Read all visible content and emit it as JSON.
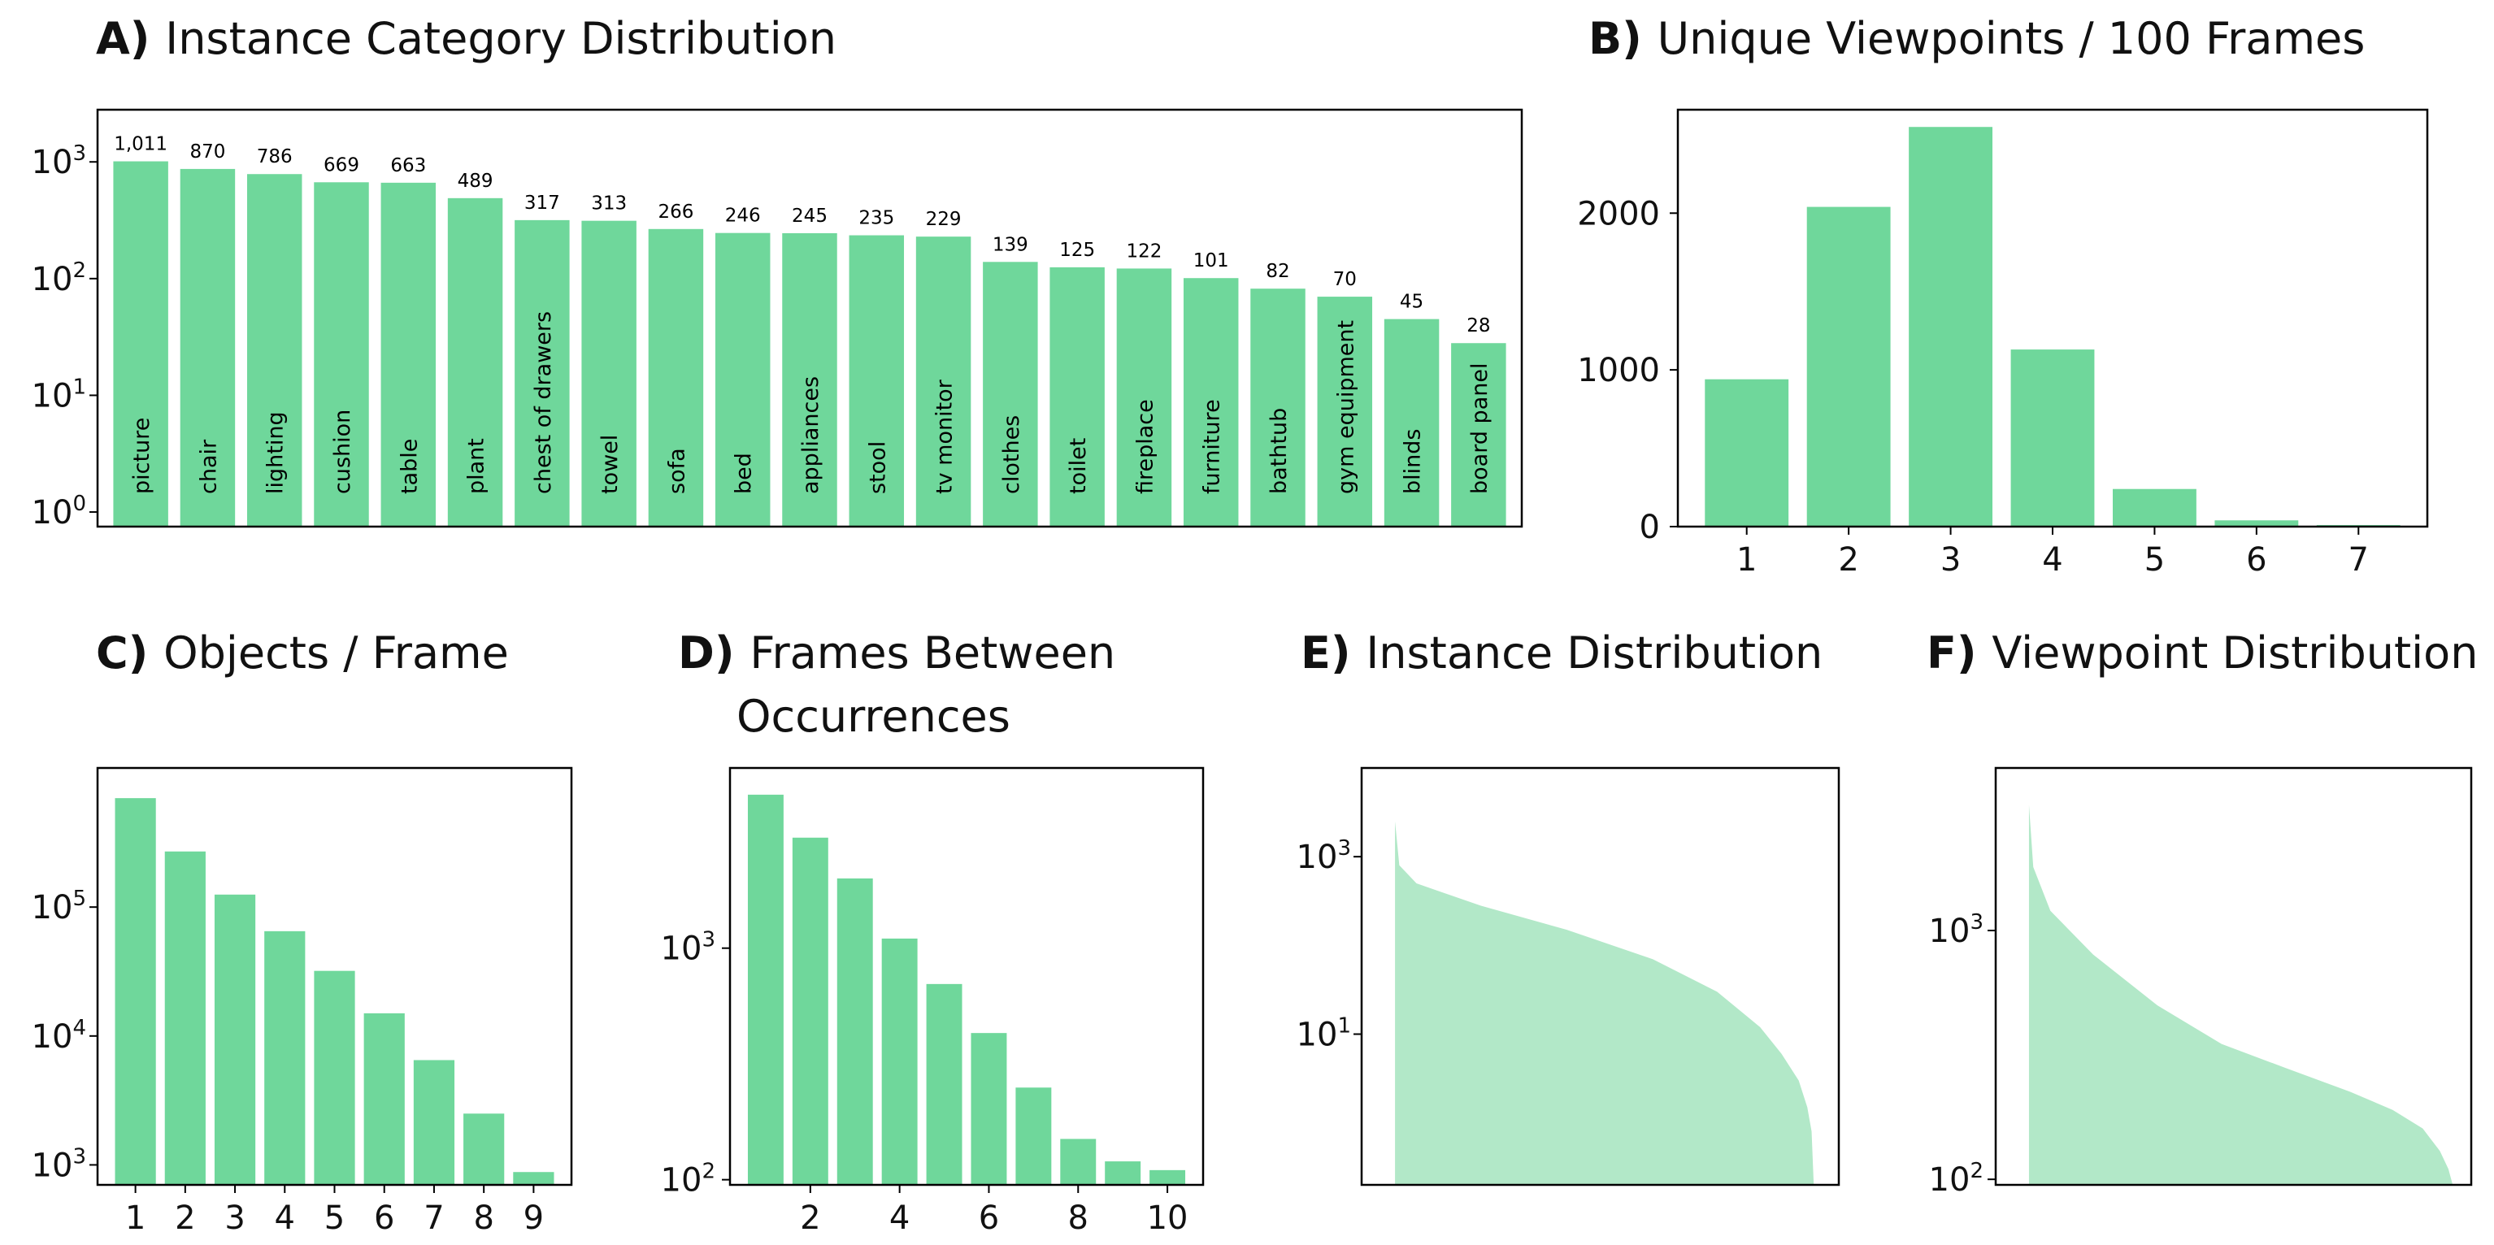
{
  "colors": {
    "bar": "#6fd79b",
    "area": "#b2e8c8",
    "axis": "#000000",
    "text": "#111111"
  },
  "chart_data": [
    {
      "id": "A",
      "type": "bar",
      "panel_label": "A)",
      "title": "Instance Category Distribution",
      "yscale": "log",
      "ylim": [
        0.75,
        2800
      ],
      "yticks": [
        {
          "base": "10",
          "exp": "0",
          "value": 1
        },
        {
          "base": "10",
          "exp": "1",
          "value": 10
        },
        {
          "base": "10",
          "exp": "2",
          "value": 100
        },
        {
          "base": "10",
          "exp": "3",
          "value": 1000
        }
      ],
      "categories": [
        "picture",
        "chair",
        "lighting",
        "cushion",
        "table",
        "plant",
        "chest of drawers",
        "towel",
        "sofa",
        "bed",
        "appliances",
        "stool",
        "tv monitor",
        "clothes",
        "toilet",
        "fireplace",
        "furniture",
        "bathtub",
        "gym equipment",
        "blinds",
        "board panel"
      ],
      "values": [
        1011,
        870,
        786,
        669,
        663,
        489,
        317,
        313,
        266,
        246,
        245,
        235,
        229,
        139,
        125,
        122,
        101,
        82,
        70,
        45,
        28
      ],
      "value_labels": [
        "1,011",
        "870",
        "786",
        "669",
        "663",
        "489",
        "317",
        "313",
        "266",
        "246",
        "245",
        "235",
        "229",
        "139",
        "125",
        "122",
        "101",
        "82",
        "70",
        "45",
        "28"
      ]
    },
    {
      "id": "B",
      "type": "bar",
      "panel_label": "B)",
      "title": "Unique Viewpoints / 100 Frames",
      "yscale": "linear",
      "ylim": [
        0,
        2660
      ],
      "yticks": [
        {
          "label": "0",
          "value": 0
        },
        {
          "label": "1000",
          "value": 1000
        },
        {
          "label": "2000",
          "value": 2000
        }
      ],
      "categories": [
        "1",
        "2",
        "3",
        "4",
        "5",
        "6",
        "7"
      ],
      "values": [
        940,
        2040,
        2550,
        1130,
        240,
        40,
        10
      ]
    },
    {
      "id": "C",
      "type": "bar",
      "panel_label": "C)",
      "title": "Objects / Frame",
      "yscale": "log",
      "ylim": [
        700,
        1200000
      ],
      "yticks": [
        {
          "base": "10",
          "exp": "3",
          "value": 1000
        },
        {
          "base": "10",
          "exp": "4",
          "value": 10000
        },
        {
          "base": "10",
          "exp": "5",
          "value": 100000
        }
      ],
      "categories": [
        "1",
        "2",
        "3",
        "4",
        "5",
        "6",
        "7",
        "8",
        "9"
      ],
      "values": [
        700000,
        270000,
        125000,
        65000,
        32000,
        15000,
        6500,
        2500,
        880
      ]
    },
    {
      "id": "D",
      "type": "bar",
      "panel_label": "D)",
      "title_lines": [
        "Frames Between",
        "Occurrences"
      ],
      "yscale": "log",
      "ylim": [
        95,
        6000
      ],
      "xlim": [
        0.2,
        10.8
      ],
      "yticks": [
        {
          "base": "10",
          "exp": "2",
          "value": 100
        },
        {
          "base": "10",
          "exp": "3",
          "value": 1000
        }
      ],
      "xticks": [
        {
          "label": "2",
          "value": 2
        },
        {
          "label": "4",
          "value": 4
        },
        {
          "label": "6",
          "value": 6
        },
        {
          "label": "8",
          "value": 8
        },
        {
          "label": "10",
          "value": 10
        }
      ],
      "x": [
        1,
        2,
        3,
        4,
        5,
        6,
        7,
        8,
        9,
        10
      ],
      "values": [
        4600,
        3000,
        2000,
        1100,
        700,
        430,
        250,
        150,
        120,
        110
      ]
    },
    {
      "id": "E",
      "type": "area",
      "panel_label": "E)",
      "title": "Instance Distribution",
      "yscale": "log",
      "ylim": [
        0.2,
        10000
      ],
      "xlim": [
        0,
        1
      ],
      "yticks": [
        {
          "base": "10",
          "exp": "3",
          "value": 1000
        },
        {
          "base": "10",
          "exp": "1",
          "value": 10
        }
      ],
      "curve": [
        [
          0,
          2500
        ],
        [
          0.01,
          800
        ],
        [
          0.05,
          500
        ],
        [
          0.2,
          280
        ],
        [
          0.4,
          150
        ],
        [
          0.6,
          70
        ],
        [
          0.75,
          30
        ],
        [
          0.85,
          12
        ],
        [
          0.9,
          6
        ],
        [
          0.94,
          3
        ],
        [
          0.96,
          1.5
        ],
        [
          0.97,
          0.8
        ],
        [
          0.975,
          0.2
        ]
      ]
    },
    {
      "id": "F",
      "type": "area",
      "panel_label": "F)",
      "title": "Viewpoint Distribution",
      "yscale": "log",
      "ylim": [
        95,
        4500
      ],
      "xlim": [
        0,
        1
      ],
      "yticks": [
        {
          "base": "10",
          "exp": "3",
          "value": 1000
        },
        {
          "base": "10",
          "exp": "2",
          "value": 100
        }
      ],
      "curve": [
        [
          0,
          3200
        ],
        [
          0.01,
          1800
        ],
        [
          0.05,
          1200
        ],
        [
          0.15,
          800
        ],
        [
          0.3,
          500
        ],
        [
          0.45,
          350
        ],
        [
          0.6,
          280
        ],
        [
          0.75,
          225
        ],
        [
          0.85,
          190
        ],
        [
          0.92,
          160
        ],
        [
          0.96,
          130
        ],
        [
          0.98,
          110
        ],
        [
          0.99,
          95
        ]
      ]
    }
  ]
}
